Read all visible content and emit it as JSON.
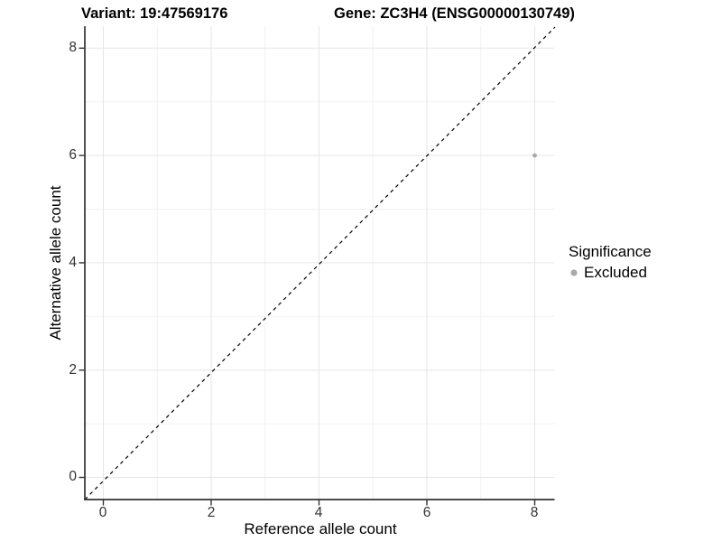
{
  "header": {
    "variant_title": "Variant: 19:47569176",
    "gene_title": "Gene: ZC3H4 (ENSG00000130749)"
  },
  "chart_data": {
    "type": "scatter",
    "title_left": "Variant: 19:47569176",
    "title_right": "Gene: ZC3H4 (ENSG00000130749)",
    "xlabel": "Reference allele count",
    "ylabel": "Alternative allele count",
    "xlim": [
      -0.4,
      8.4
    ],
    "ylim": [
      -0.4,
      8.4
    ],
    "x_ticks": [
      0,
      2,
      4,
      6,
      8
    ],
    "y_ticks": [
      0,
      2,
      4,
      6,
      8
    ],
    "grid": "major and minor, light gray, white background",
    "reference_line": {
      "kind": "abline",
      "slope": 1,
      "intercept": 0,
      "style": "dashed",
      "color": "#000000"
    },
    "points": [
      {
        "x": 8,
        "y": 6,
        "series": "Excluded"
      }
    ],
    "point_color": "#a9a9a9",
    "legend": {
      "position": "right",
      "title": "Significance",
      "entries": [
        {
          "label": "Excluded",
          "color": "#a9a9a9"
        }
      ]
    }
  },
  "colors": {
    "background": "#ffffff",
    "grid_major": "#e6e6e6",
    "grid_minor": "#f1f1f1",
    "axis_line": "#333333",
    "dashed_line": "#000000",
    "point": "#a9a9a9"
  }
}
